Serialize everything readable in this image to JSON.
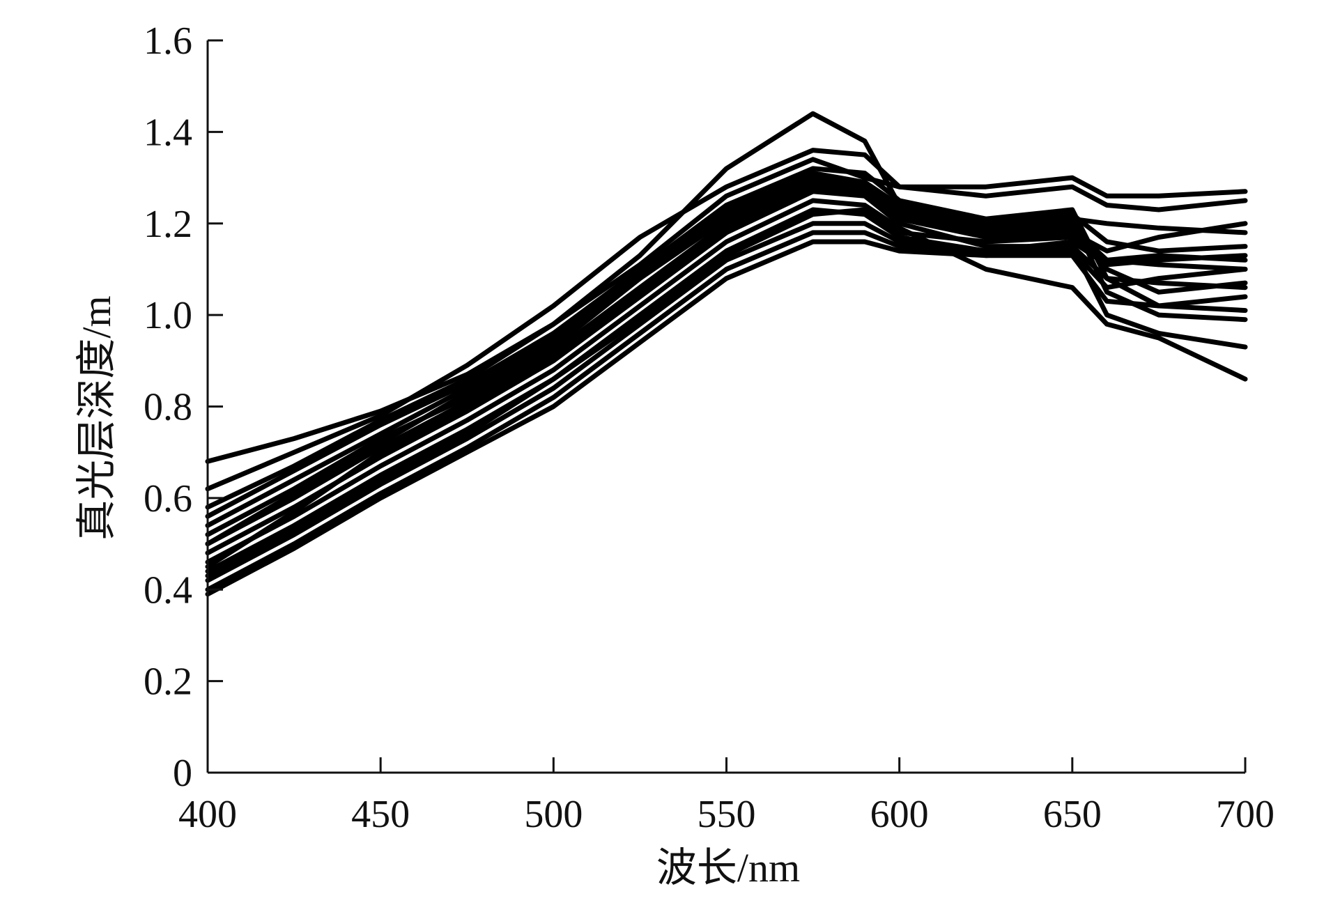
{
  "chart_data": {
    "type": "line",
    "title": "",
    "xlabel": "波长/nm",
    "ylabel": "真光层深度/m",
    "xlim": [
      400,
      700
    ],
    "ylim": [
      0,
      1.6
    ],
    "x_ticks": [
      400,
      450,
      500,
      550,
      600,
      650,
      700
    ],
    "y_ticks": [
      0,
      0.2,
      0.4,
      0.6,
      0.8,
      1.0,
      1.2,
      1.4,
      1.6
    ],
    "y_tick_labels": [
      "0",
      "0.2",
      "0.4",
      "0.6",
      "0.8",
      "1.0",
      "1.2",
      "1.4",
      "1.6"
    ],
    "legend": "none",
    "grid": false,
    "line_color": "#000000",
    "x": [
      400,
      425,
      450,
      475,
      500,
      525,
      550,
      575,
      590,
      600,
      625,
      650,
      660,
      675,
      700
    ],
    "series": [
      {
        "values": [
          0.68,
          0.73,
          0.79,
          0.87,
          0.98,
          1.13,
          1.32,
          1.44,
          1.38,
          1.24,
          1.18,
          1.21,
          1.2,
          1.19,
          1.18
        ]
      },
      {
        "values": [
          0.62,
          0.7,
          0.78,
          0.89,
          1.02,
          1.17,
          1.28,
          1.36,
          1.35,
          1.28,
          1.26,
          1.28,
          1.24,
          1.23,
          1.25
        ]
      },
      {
        "values": [
          0.58,
          0.67,
          0.77,
          0.86,
          0.98,
          1.11,
          1.26,
          1.34,
          1.3,
          1.28,
          1.28,
          1.3,
          1.26,
          1.26,
          1.27
        ]
      },
      {
        "values": [
          0.56,
          0.66,
          0.76,
          0.85,
          0.96,
          1.1,
          1.24,
          1.32,
          1.31,
          1.25,
          1.21,
          1.23,
          1.08,
          1.02,
          1.01
        ]
      },
      {
        "values": [
          0.54,
          0.64,
          0.74,
          0.84,
          0.95,
          1.09,
          1.23,
          1.31,
          1.29,
          1.24,
          1.2,
          1.22,
          1.16,
          1.14,
          1.15
        ]
      },
      {
        "values": [
          0.52,
          0.62,
          0.73,
          0.82,
          0.93,
          1.08,
          1.22,
          1.3,
          1.28,
          1.23,
          1.19,
          1.21,
          1.05,
          1.0,
          0.99
        ]
      },
      {
        "values": [
          0.5,
          0.6,
          0.71,
          0.81,
          0.92,
          1.06,
          1.2,
          1.28,
          1.27,
          1.22,
          1.18,
          1.19,
          1.12,
          1.11,
          1.1
        ]
      },
      {
        "values": [
          0.48,
          0.58,
          0.69,
          0.79,
          0.9,
          1.04,
          1.18,
          1.27,
          1.26,
          1.2,
          1.15,
          1.15,
          1.0,
          0.96,
          0.93
        ]
      },
      {
        "values": [
          0.46,
          0.56,
          0.67,
          0.77,
          0.88,
          1.02,
          1.16,
          1.25,
          1.24,
          1.19,
          1.1,
          1.06,
          0.98,
          0.95,
          0.86
        ]
      },
      {
        "values": [
          0.44,
          0.54,
          0.65,
          0.75,
          0.86,
          1.0,
          1.14,
          1.23,
          1.22,
          1.17,
          1.14,
          1.15,
          1.08,
          1.07,
          1.06
        ]
      },
      {
        "values": [
          0.42,
          0.52,
          0.63,
          0.73,
          0.84,
          0.98,
          1.12,
          1.2,
          1.2,
          1.16,
          1.13,
          1.13,
          1.03,
          1.02,
          1.04
        ]
      },
      {
        "values": [
          0.4,
          0.5,
          0.61,
          0.71,
          0.82,
          0.96,
          1.1,
          1.18,
          1.18,
          1.15,
          1.14,
          1.16,
          1.11,
          1.12,
          1.13
        ]
      },
      {
        "values": [
          0.39,
          0.49,
          0.6,
          0.7,
          0.8,
          0.94,
          1.08,
          1.16,
          1.16,
          1.14,
          1.13,
          1.14,
          1.06,
          1.08,
          1.1
        ]
      },
      {
        "values": [
          0.45,
          0.57,
          0.7,
          0.8,
          0.91,
          1.05,
          1.19,
          1.27,
          1.27,
          1.21,
          1.17,
          1.18,
          1.14,
          1.17,
          1.2
        ]
      },
      {
        "values": [
          0.5,
          0.61,
          0.72,
          0.83,
          0.94,
          1.08,
          1.21,
          1.29,
          1.28,
          1.22,
          1.18,
          1.2,
          1.1,
          1.05,
          1.07
        ]
      },
      {
        "values": [
          0.43,
          0.53,
          0.64,
          0.74,
          0.86,
          0.99,
          1.13,
          1.22,
          1.23,
          1.18,
          1.16,
          1.17,
          1.12,
          1.13,
          1.12
        ]
      }
    ]
  }
}
